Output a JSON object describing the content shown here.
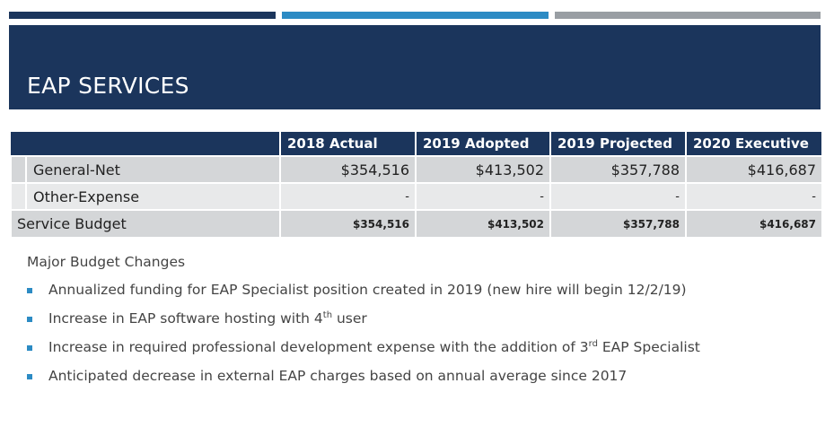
{
  "header": {
    "title": "EAP SERVICES"
  },
  "table": {
    "columns": [
      "",
      "2018 Actual",
      "2019 Adopted",
      "2019 Projected",
      "2020 Executive"
    ],
    "rows": [
      {
        "label": "General-Net",
        "values": [
          "$354,516",
          "$413,502",
          "$357,788",
          "$416,687"
        ]
      },
      {
        "label": "Other-Expense",
        "values": [
          "-",
          "-",
          "-",
          "-"
        ]
      }
    ],
    "total": {
      "label": "Service Budget",
      "values": [
        "$354,516",
        "$413,502",
        "$357,788",
        "$416,687"
      ]
    }
  },
  "changes": {
    "heading": "Major Budget Changes",
    "items": [
      {
        "text": "Annualized funding for EAP Specialist position created in 2019 (new hire will begin 12/2/19)",
        "sup": "",
        "tail": ""
      },
      {
        "text": "Increase in EAP software hosting with 4",
        "sup": "th",
        "tail": " user"
      },
      {
        "text": "Increase in required professional development expense with the addition of 3",
        "sup": "rd",
        "tail": " EAP Specialist"
      },
      {
        "text": "Anticipated decrease in external EAP charges based on annual average since 2017",
        "sup": "",
        "tail": ""
      }
    ]
  },
  "colors": {
    "navy": "#1b355c",
    "blue": "#2c8bc4",
    "gray": "#999ea3"
  }
}
